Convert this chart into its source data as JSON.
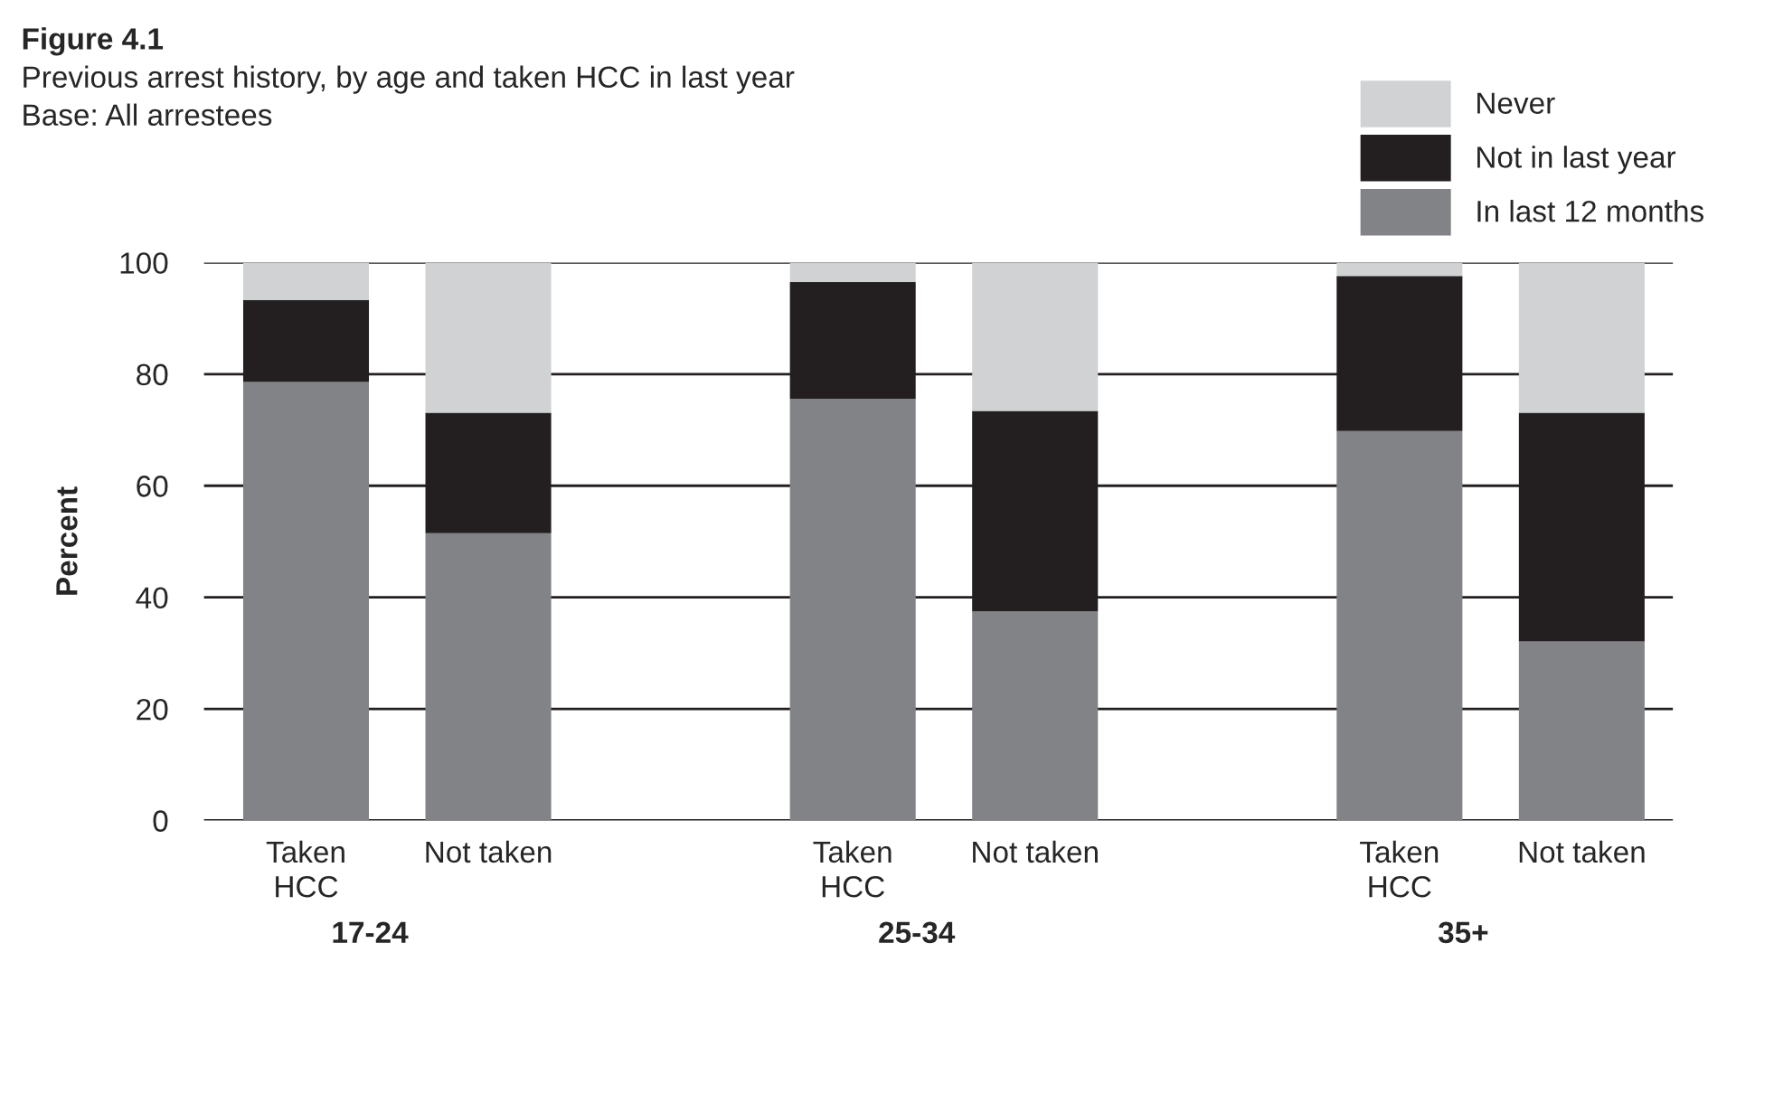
{
  "chart_data": {
    "type": "bar",
    "title": "Figure 4.1",
    "subtitle": "Previous arrest history, by age and taken HCC in last year\nBase: All arrestees",
    "ylabel": "Percent",
    "categories": [
      "Taken\nHCC",
      "Not taken",
      null,
      "Taken\nHCC",
      "Not taken",
      null,
      "Taken\nHCC",
      "Not taken"
    ],
    "annotations": [
      "17-24",
      "25-34",
      "35+"
    ],
    "stacked": true,
    "series": [
      {
        "name": "In last 12 months",
        "color": "#828387",
        "values": [
          78.6,
          51.5,
          null,
          75.6,
          37.5,
          null,
          69.8,
          32.1
        ]
      },
      {
        "name": "Not in last year",
        "color": "#231f20",
        "values": [
          14.7,
          21.6,
          null,
          20.9,
          35.9,
          null,
          27.8,
          41.0
        ]
      },
      {
        "name": "Never",
        "color": "#d1d2d4",
        "values": [
          6.7,
          26.9,
          null,
          3.5,
          26.6,
          null,
          2.4,
          26.9
        ]
      }
    ],
    "ylim": [
      0,
      100
    ],
    "yticks": [
      0,
      20,
      40,
      60,
      80,
      100
    ],
    "grid": "y",
    "legend": "top right"
  }
}
